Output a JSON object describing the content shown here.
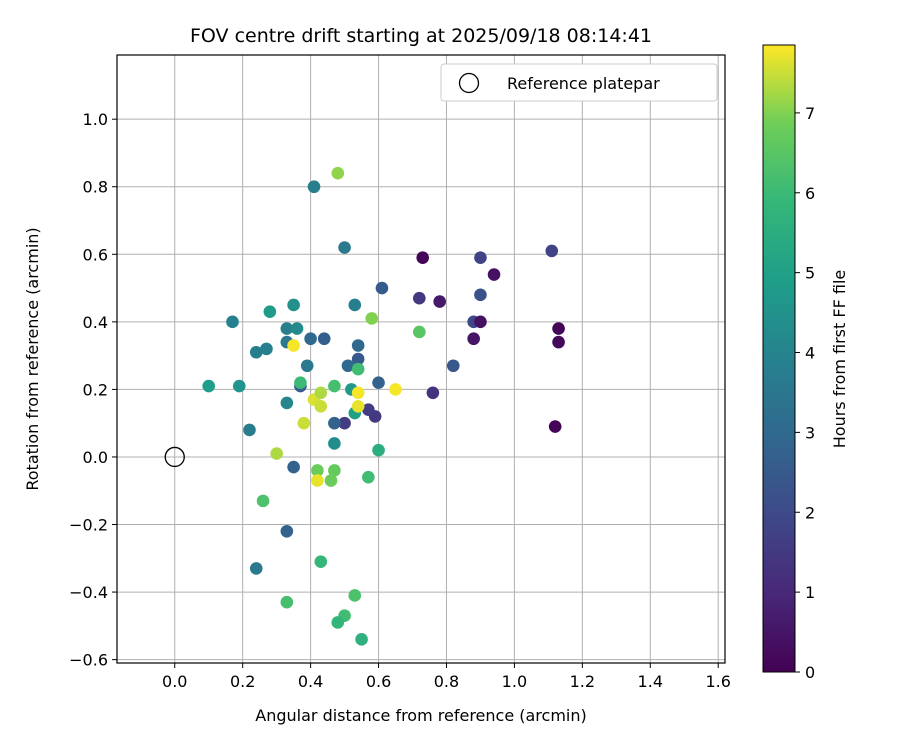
{
  "chart_data": {
    "type": "scatter",
    "title": "FOV centre drift starting at 2025/09/18 08:14:41",
    "xlabel": "Angular distance from reference (arcmin)",
    "ylabel": "Rotation from reference (arcmin)",
    "xlim": [
      -0.17,
      1.62
    ],
    "ylim": [
      -0.61,
      1.19
    ],
    "xticks": [
      "0.0",
      "0.2",
      "0.4",
      "0.6",
      "0.8",
      "1.0",
      "1.2",
      "1.4",
      "1.6"
    ],
    "yticks": [
      "−0.6",
      "−0.4",
      "−0.2",
      "0.0",
      "0.2",
      "0.4",
      "0.6",
      "0.8",
      "1.0"
    ],
    "grid": true,
    "legend": {
      "location": "top-right",
      "entries": [
        "Reference platepar"
      ]
    },
    "reference_point": {
      "x": 0.0,
      "y": 0.0
    },
    "colorbar": {
      "label": "Hours from first FF file",
      "colormap": "viridis",
      "range": [
        0,
        7.85
      ],
      "ticks": [
        "0",
        "1",
        "2",
        "3",
        "4",
        "5",
        "6",
        "7"
      ]
    },
    "points": [
      {
        "x": 0.73,
        "y": 0.59,
        "c": 0.1
      },
      {
        "x": 0.78,
        "y": 0.46,
        "c": 0.6
      },
      {
        "x": 0.72,
        "y": 0.47,
        "c": 1.5
      },
      {
        "x": 0.9,
        "y": 0.59,
        "c": 1.8
      },
      {
        "x": 0.94,
        "y": 0.54,
        "c": 0.4
      },
      {
        "x": 0.9,
        "y": 0.48,
        "c": 2.2
      },
      {
        "x": 0.88,
        "y": 0.4,
        "c": 1.9
      },
      {
        "x": 0.9,
        "y": 0.4,
        "c": 0.4
      },
      {
        "x": 0.88,
        "y": 0.35,
        "c": 0.5
      },
      {
        "x": 0.82,
        "y": 0.27,
        "c": 2.4
      },
      {
        "x": 0.76,
        "y": 0.19,
        "c": 1.3
      },
      {
        "x": 1.11,
        "y": 0.61,
        "c": 1.8
      },
      {
        "x": 1.13,
        "y": 0.38,
        "c": 0.1
      },
      {
        "x": 1.13,
        "y": 0.34,
        "c": 0.2
      },
      {
        "x": 1.12,
        "y": 0.09,
        "c": 0.1
      },
      {
        "x": 0.61,
        "y": 0.5,
        "c": 2.5
      },
      {
        "x": 0.6,
        "y": 0.22,
        "c": 2.8
      },
      {
        "x": 0.59,
        "y": 0.12,
        "c": 1.5
      },
      {
        "x": 0.57,
        "y": 0.14,
        "c": 1.6
      },
      {
        "x": 0.54,
        "y": 0.29,
        "c": 2.5
      },
      {
        "x": 0.54,
        "y": 0.33,
        "c": 3.0
      },
      {
        "x": 0.51,
        "y": 0.27,
        "c": 3.0
      },
      {
        "x": 0.5,
        "y": 0.1,
        "c": 1.6
      },
      {
        "x": 0.47,
        "y": 0.1,
        "c": 2.8
      },
      {
        "x": 0.44,
        "y": 0.35,
        "c": 2.7
      },
      {
        "x": 0.4,
        "y": 0.35,
        "c": 3.0
      },
      {
        "x": 0.37,
        "y": 0.21,
        "c": 2.6
      },
      {
        "x": 0.35,
        "y": -0.03,
        "c": 2.8
      },
      {
        "x": 0.33,
        "y": -0.22,
        "c": 2.8
      },
      {
        "x": 0.24,
        "y": -0.33,
        "c": 3.6
      },
      {
        "x": 0.41,
        "y": 0.8,
        "c": 3.8
      },
      {
        "x": 0.5,
        "y": 0.62,
        "c": 3.6
      },
      {
        "x": 0.53,
        "y": 0.45,
        "c": 3.8
      },
      {
        "x": 0.35,
        "y": 0.45,
        "c": 4.4
      },
      {
        "x": 0.17,
        "y": 0.4,
        "c": 3.9
      },
      {
        "x": 0.33,
        "y": 0.38,
        "c": 3.8
      },
      {
        "x": 0.36,
        "y": 0.38,
        "c": 4.2
      },
      {
        "x": 0.33,
        "y": 0.34,
        "c": 3.6
      },
      {
        "x": 0.24,
        "y": 0.31,
        "c": 3.8
      },
      {
        "x": 0.27,
        "y": 0.32,
        "c": 3.8
      },
      {
        "x": 0.39,
        "y": 0.27,
        "c": 3.6
      },
      {
        "x": 0.33,
        "y": 0.16,
        "c": 4.1
      },
      {
        "x": 0.22,
        "y": 0.08,
        "c": 3.7
      },
      {
        "x": 0.28,
        "y": 0.43,
        "c": 4.8
      },
      {
        "x": 0.1,
        "y": 0.21,
        "c": 4.9
      },
      {
        "x": 0.19,
        "y": 0.21,
        "c": 4.6
      },
      {
        "x": 0.47,
        "y": 0.04,
        "c": 4.3
      },
      {
        "x": 0.52,
        "y": 0.2,
        "c": 4.7
      },
      {
        "x": 0.53,
        "y": 0.13,
        "c": 5.0
      },
      {
        "x": 0.6,
        "y": 0.02,
        "c": 5.5
      },
      {
        "x": 0.54,
        "y": 0.26,
        "c": 6.1
      },
      {
        "x": 0.47,
        "y": 0.21,
        "c": 6.2
      },
      {
        "x": 0.37,
        "y": 0.22,
        "c": 6.0
      },
      {
        "x": 0.57,
        "y": -0.06,
        "c": 6.1
      },
      {
        "x": 0.26,
        "y": -0.13,
        "c": 6.3
      },
      {
        "x": 0.43,
        "y": -0.31,
        "c": 5.9
      },
      {
        "x": 0.33,
        "y": -0.43,
        "c": 6.2
      },
      {
        "x": 0.53,
        "y": -0.41,
        "c": 6.3
      },
      {
        "x": 0.5,
        "y": -0.47,
        "c": 6.1
      },
      {
        "x": 0.48,
        "y": -0.49,
        "c": 5.8
      },
      {
        "x": 0.55,
        "y": -0.54,
        "c": 5.6
      },
      {
        "x": 0.42,
        "y": -0.04,
        "c": 6.8
      },
      {
        "x": 0.47,
        "y": -0.04,
        "c": 6.7
      },
      {
        "x": 0.46,
        "y": -0.07,
        "c": 6.8
      },
      {
        "x": 0.42,
        "y": -0.07,
        "c": 7.7
      },
      {
        "x": 0.3,
        "y": 0.01,
        "c": 7.3
      },
      {
        "x": 0.58,
        "y": 0.41,
        "c": 7.0
      },
      {
        "x": 0.72,
        "y": 0.37,
        "c": 6.5
      },
      {
        "x": 0.48,
        "y": 0.84,
        "c": 7.1
      },
      {
        "x": 0.35,
        "y": 0.33,
        "c": 7.8
      },
      {
        "x": 0.38,
        "y": 0.1,
        "c": 7.5
      },
      {
        "x": 0.41,
        "y": 0.17,
        "c": 7.6
      },
      {
        "x": 0.43,
        "y": 0.19,
        "c": 7.3
      },
      {
        "x": 0.43,
        "y": 0.15,
        "c": 7.5
      },
      {
        "x": 0.54,
        "y": 0.19,
        "c": 7.8
      },
      {
        "x": 0.54,
        "y": 0.15,
        "c": 7.7
      },
      {
        "x": 0.65,
        "y": 0.2,
        "c": 7.8
      }
    ]
  }
}
